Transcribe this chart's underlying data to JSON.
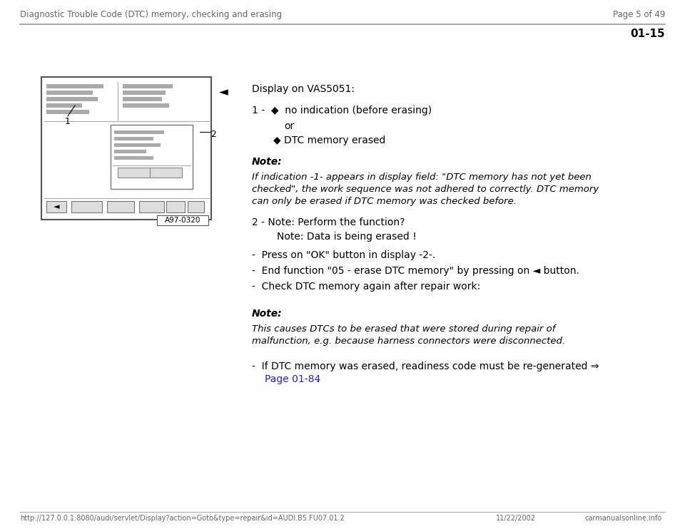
{
  "header_left": "Diagnostic Trouble Code (DTC) memory, checking and erasing",
  "header_right": "Page 5 of 49",
  "section_number": "01-15",
  "display_title": "Display on VAS5051:",
  "bullet": "◆",
  "item1_text": "no indication (before erasing)",
  "or_text": "or",
  "item1b_text": "DTC memory erased",
  "note_bold": "Note:",
  "note_italic_lines": [
    "If indication -1- appears in display field: \"DTC memory has not yet been",
    "checked\", the work sequence was not adhered to correctly. DTC memory",
    "can only be erased if DTC memory was checked before."
  ],
  "item2_line": "2 - Note: Perform the function?",
  "item2_sub": "Note: Data is being erased !",
  "bullet_items": [
    "Press on \"OK\" button in display -2-.",
    "End function \"05 - erase DTC memory\" by pressing on ◄ button.",
    "Check DTC memory again after repair work:"
  ],
  "note2_bold": "Note:",
  "note2_italic_lines": [
    "This causes DTCs to be erased that were stored during repair of",
    "malfunction, e.g. because harness connectors were disconnected."
  ],
  "final_line": "If DTC memory was erased, readiness code must be re-generated ⇒",
  "final_link": "Page 01-84",
  "final_end": " .",
  "caption": "A97-0320",
  "footer_url": "http://127.0.0.1:8080/audi/servlet/Display?action=Goto&type=repair&id=AUDI.B5.FU07.01.2",
  "footer_date": "11/22/2002",
  "footer_logo": "carmanualsonline.info",
  "bg_color": "#ffffff",
  "text_color": "#000000",
  "gray_color": "#666666",
  "link_color": "#2222cc",
  "line_color": "#999999",
  "bar_color": "#aaaaaa",
  "box_color": "#e8e8e8"
}
